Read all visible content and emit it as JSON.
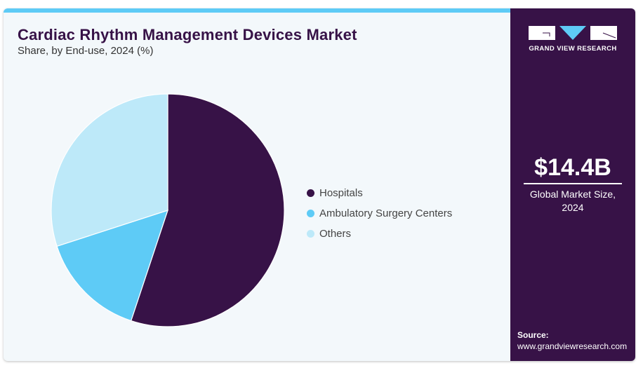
{
  "header": {
    "title": "Cardiac Rhythm Management Devices Market",
    "subtitle": "Share, by End-use, 2024 (%)"
  },
  "brand": {
    "name": "GRAND VIEW RESEARCH",
    "accent": "#5ecbf6",
    "panel_color": "#371247"
  },
  "highlight": {
    "value": "$14.4B",
    "label_line1": "Global Market Size,",
    "label_line2": "2024"
  },
  "source": {
    "heading": "Source:",
    "url": "www.grandviewresearch.com"
  },
  "chart_data": {
    "type": "pie",
    "title": "Cardiac Rhythm Management Devices Market",
    "subtitle": "Share, by End-use, 2024 (%)",
    "categories": [
      "Hospitals",
      "Ambulatory Surgery Centers",
      "Others"
    ],
    "values": [
      55.1,
      14.9,
      30.0
    ],
    "colors": [
      "#371247",
      "#5ecbf6",
      "#bde9f9"
    ],
    "start_angle_deg": 0,
    "direction": "clockwise",
    "legend_position": "right",
    "data_labels": false
  }
}
